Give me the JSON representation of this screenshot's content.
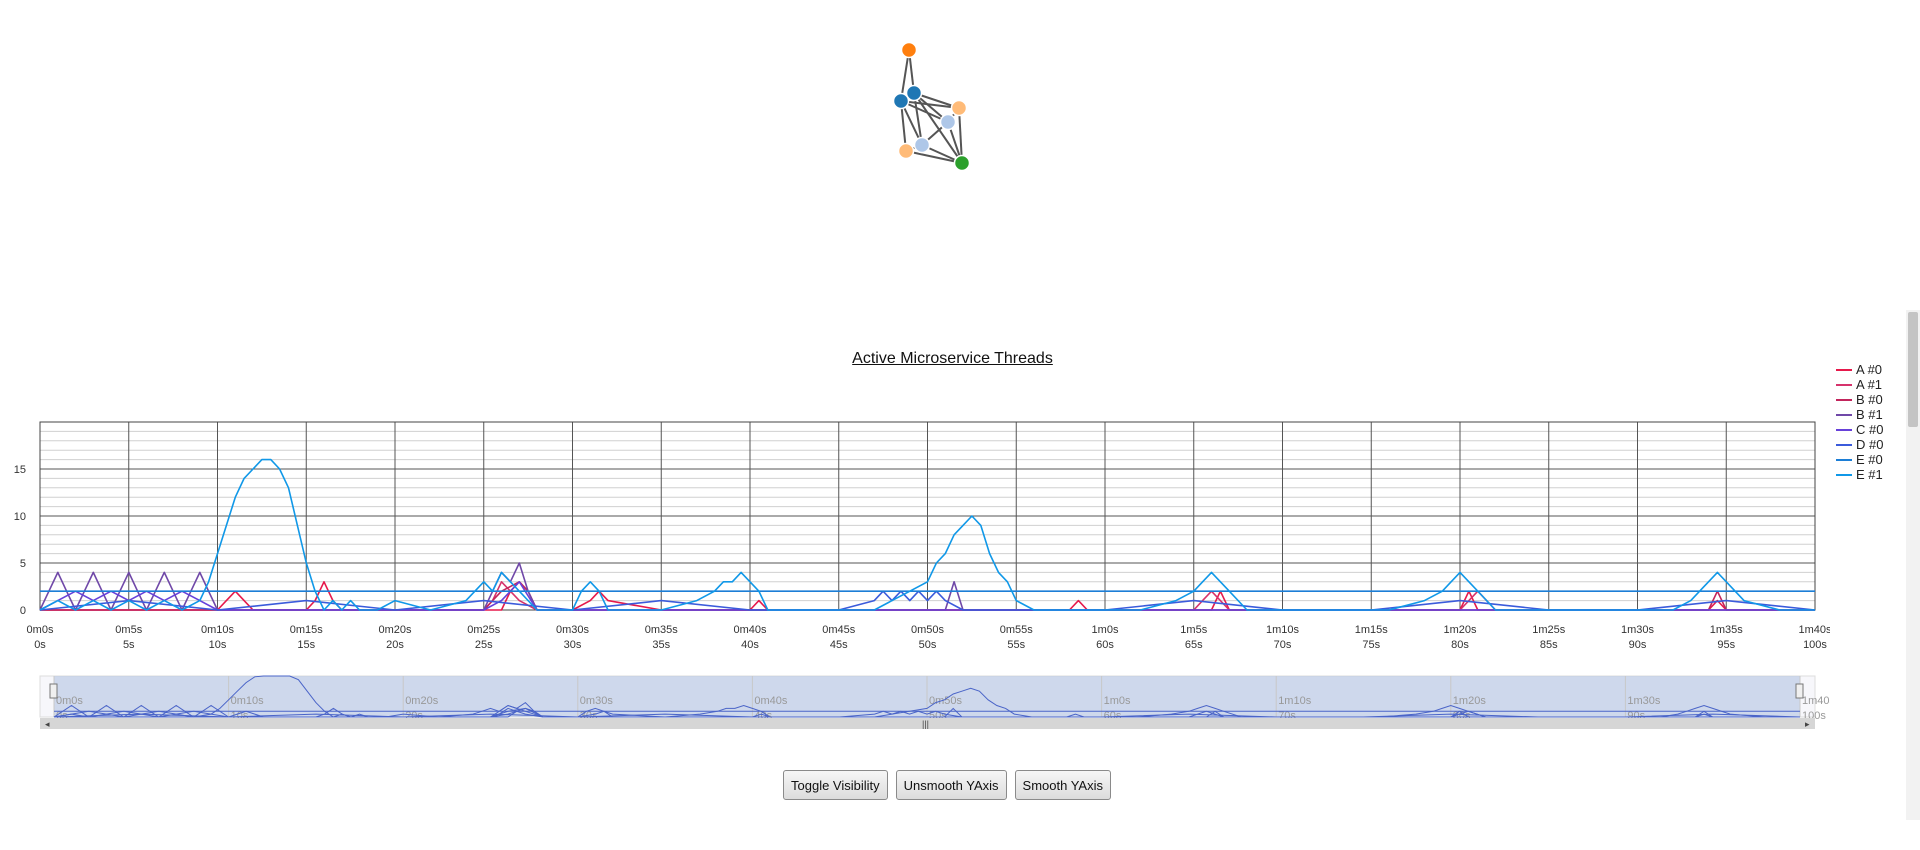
{
  "graph": {
    "nodes": [
      {
        "id": 1,
        "color": "#ff7f0e"
      },
      {
        "id": 2,
        "color": "#1f77b4"
      },
      {
        "id": 3,
        "color": "#1f77b4"
      },
      {
        "id": 4,
        "color": "#ffbb78"
      },
      {
        "id": 5,
        "color": "#aec7e8"
      },
      {
        "id": 6,
        "color": "#aec7e8"
      },
      {
        "id": 7,
        "color": "#ffbb78"
      },
      {
        "id": 8,
        "color": "#2ca02c"
      }
    ],
    "links": [
      [
        1,
        2
      ],
      [
        1,
        3
      ],
      [
        2,
        3
      ],
      [
        2,
        4
      ],
      [
        2,
        5
      ],
      [
        2,
        8
      ],
      [
        3,
        4
      ],
      [
        3,
        6
      ],
      [
        3,
        7
      ],
      [
        3,
        5
      ],
      [
        4,
        5
      ],
      [
        4,
        8
      ],
      [
        5,
        8
      ],
      [
        6,
        7
      ],
      [
        6,
        8
      ],
      [
        7,
        8
      ],
      [
        2,
        6
      ],
      [
        5,
        6
      ]
    ]
  },
  "buttons": {
    "toggle": "Toggle Visibility",
    "unsmooth": "Unsmooth YAxis",
    "smooth": "Smooth YAxis"
  },
  "chart_data": {
    "type": "line",
    "title": "Active Microservice Threads",
    "xlabel": "",
    "ylabel": "",
    "xlim": [
      0,
      100
    ],
    "ylim": [
      0,
      20
    ],
    "yticks": [
      0,
      5,
      10,
      15
    ],
    "xticks_top": [
      "0m0s",
      "0m5s",
      "0m10s",
      "0m15s",
      "0m20s",
      "0m25s",
      "0m30s",
      "0m35s",
      "0m40s",
      "0m45s",
      "0m50s",
      "0m55s",
      "1m0s",
      "1m5s",
      "1m10s",
      "1m15s",
      "1m20s",
      "1m25s",
      "1m30s",
      "1m35s",
      "1m40s"
    ],
    "xticks_bottom": [
      "0s",
      "5s",
      "10s",
      "15s",
      "20s",
      "25s",
      "30s",
      "35s",
      "40s",
      "45s",
      "50s",
      "55s",
      "60s",
      "65s",
      "70s",
      "75s",
      "80s",
      "85s",
      "90s",
      "95s",
      "100s"
    ],
    "nav_xticks_top": [
      "0m0s",
      "0m10s",
      "0m20s",
      "0m30s",
      "0m40s",
      "0m50s",
      "1m0s",
      "1m10s",
      "1m20s",
      "1m30s",
      "1m40s"
    ],
    "nav_xticks_bottom": [
      "0s",
      "10s",
      "20s",
      "30s",
      "40s",
      "50s",
      "60s",
      "70s",
      "80s",
      "90s",
      "100s"
    ],
    "grid": true,
    "legend_position": "right",
    "series": [
      {
        "name": "A #0",
        "color": "#e6194b",
        "x": [
          0,
          5,
          10,
          10.5,
          11,
          11.5,
          12,
          15,
          15.5,
          16,
          16.5,
          17,
          20,
          25,
          26,
          26.5,
          27,
          27.5,
          28,
          30,
          31,
          31.5,
          32,
          35,
          40,
          40.5,
          41,
          45,
          50,
          55,
          58,
          58.5,
          59,
          60,
          65,
          66,
          66.5,
          67,
          70,
          75,
          80,
          80.5,
          81,
          85,
          90,
          94,
          94.5,
          95,
          100
        ],
        "y": [
          0,
          0,
          0,
          1,
          2,
          1,
          0,
          0,
          1,
          3,
          1,
          0,
          0,
          0,
          0,
          2,
          3,
          2,
          0,
          0,
          1,
          2,
          1,
          0,
          0,
          1,
          0,
          0,
          0,
          0,
          0,
          1,
          0,
          0,
          0,
          0,
          2,
          0,
          0,
          0,
          0,
          2,
          0,
          0,
          0,
          0,
          1,
          0,
          0
        ]
      },
      {
        "name": "A #1",
        "color": "#d6336c",
        "x": [
          0,
          20,
          25,
          25.5,
          26,
          26.5,
          27,
          28,
          30,
          40,
          50,
          60,
          65,
          65.5,
          66,
          67,
          70,
          80,
          80.5,
          81,
          82,
          90,
          100
        ],
        "y": [
          0,
          0,
          0,
          1,
          3,
          2,
          1,
          0,
          0,
          0,
          0,
          0,
          0,
          1,
          2,
          0,
          0,
          0,
          1,
          2,
          0,
          0,
          0
        ]
      },
      {
        "name": "B #0",
        "color": "#c2255c",
        "x": [
          0,
          10,
          20,
          25,
          25.5,
          26,
          27,
          27.5,
          28,
          30,
          40,
          50,
          60,
          70,
          80,
          90,
          94,
          94.5,
          95,
          100
        ],
        "y": [
          0,
          0,
          0,
          0,
          1,
          2,
          3,
          2,
          0,
          0,
          0,
          0,
          0,
          0,
          0,
          0,
          0,
          2,
          0,
          0
        ]
      },
      {
        "name": "B #1",
        "color": "#7048a8",
        "x": [
          0,
          0.5,
          1,
          1.5,
          2,
          2.5,
          3,
          3.5,
          4,
          4.5,
          5,
          5.5,
          6,
          6.5,
          7,
          7.5,
          8,
          8.5,
          9,
          9.5,
          10,
          20,
          25,
          25.5,
          26,
          26.5,
          27,
          27.5,
          28,
          30,
          40,
          50,
          51,
          51.5,
          52,
          55,
          60,
          70,
          80,
          90,
          100
        ],
        "y": [
          0,
          2,
          4,
          2,
          0,
          2,
          4,
          2,
          0,
          2,
          4,
          2,
          0,
          2,
          4,
          2,
          0,
          2,
          4,
          2,
          0,
          0,
          0,
          2,
          4,
          3,
          5,
          2,
          0,
          0,
          0,
          0,
          0,
          3,
          0,
          0,
          0,
          0,
          0,
          0,
          0
        ]
      },
      {
        "name": "C #0",
        "color": "#6741d9",
        "x": [
          0,
          1,
          2,
          3,
          4,
          5,
          6,
          7,
          8,
          9,
          10,
          20,
          25,
          26,
          27,
          28,
          30,
          40,
          50,
          60,
          70,
          80,
          90,
          100
        ],
        "y": [
          0,
          1,
          2,
          1,
          2,
          1,
          2,
          1,
          2,
          1,
          0,
          0,
          0,
          1,
          3,
          0,
          0,
          0,
          0,
          0,
          0,
          0,
          0,
          0
        ]
      },
      {
        "name": "D #0",
        "color": "#3b5bdb",
        "x": [
          0,
          5,
          10,
          15,
          20,
          25,
          30,
          35,
          40,
          45,
          47,
          47.5,
          48,
          48.5,
          49,
          49.5,
          50,
          50.5,
          51,
          52,
          55,
          60,
          65,
          70,
          75,
          80,
          85,
          90,
          95,
          100
        ],
        "y": [
          0,
          1,
          0,
          1,
          0,
          1,
          0,
          1,
          0,
          0,
          1,
          2,
          1,
          2,
          1,
          2,
          1,
          2,
          1,
          0,
          0,
          0,
          1,
          0,
          0,
          1,
          0,
          0,
          1,
          0
        ]
      },
      {
        "name": "E #0",
        "color": "#1c7ed6",
        "x": [
          0,
          10,
          100
        ],
        "y": [
          2,
          2,
          2
        ]
      },
      {
        "name": "E #1",
        "color": "#1098e8",
        "x": [
          0,
          1,
          2,
          3,
          4,
          5,
          6,
          7,
          8,
          9,
          9.5,
          10,
          10.5,
          11,
          11.5,
          12,
          12.5,
          13,
          13.5,
          14,
          14.5,
          15,
          15.5,
          16,
          16.5,
          17,
          17.5,
          18,
          19,
          20,
          22,
          24,
          24.5,
          25,
          25.5,
          26,
          26.5,
          27,
          28,
          30,
          30.5,
          31,
          31.5,
          32,
          33,
          35,
          37,
          38,
          38.5,
          39,
          39.5,
          40,
          40.5,
          41,
          42,
          45,
          47,
          48,
          49,
          50,
          50.5,
          51,
          51.5,
          52,
          52.5,
          53,
          53.5,
          54,
          54.5,
          55,
          56,
          58,
          60,
          62,
          64,
          65,
          65.5,
          66,
          66.5,
          67,
          68,
          70,
          72,
          74,
          76,
          78,
          79,
          79.5,
          80,
          80.5,
          81,
          82,
          84,
          86,
          88,
          92,
          93,
          93.5,
          94,
          94.5,
          95,
          96,
          98,
          99,
          100
        ],
        "y": [
          0,
          1,
          0,
          1,
          0,
          1,
          0,
          1,
          0,
          1,
          3,
          6,
          9,
          12,
          14,
          15,
          16,
          16,
          15,
          13,
          9,
          5,
          2,
          0,
          1,
          0,
          1,
          0,
          0,
          1,
          0,
          1,
          2,
          3,
          2,
          4,
          3,
          2,
          0,
          0,
          2,
          3,
          2,
          0,
          0,
          0,
          1,
          2,
          3,
          3,
          4,
          3,
          2,
          0,
          0,
          0,
          0,
          1,
          2,
          3,
          5,
          6,
          8,
          9,
          10,
          9,
          6,
          4,
          3,
          1,
          0,
          0,
          0,
          0,
          1,
          2,
          3,
          4,
          3,
          2,
          0,
          0,
          0,
          0,
          0,
          1,
          2,
          3,
          4,
          3,
          2,
          0,
          0,
          0,
          0,
          0,
          1,
          2,
          3,
          4,
          3,
          1,
          0,
          0,
          0
        ]
      }
    ]
  }
}
